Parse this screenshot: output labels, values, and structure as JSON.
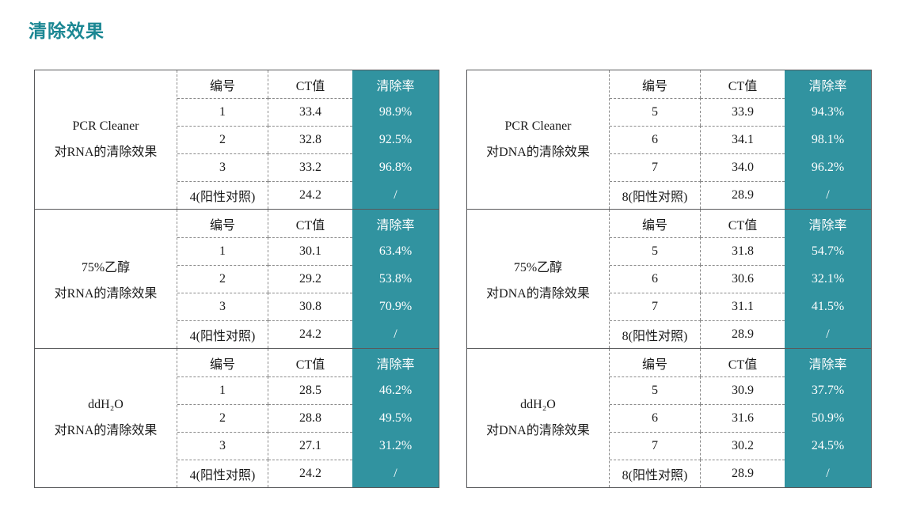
{
  "title": "清除效果",
  "colors": {
    "accent": "#3193A0",
    "title": "#1B8793"
  },
  "col_headers": {
    "id": "编号",
    "ct": "CT值",
    "rate": "清除率"
  },
  "tables": [
    {
      "name": "RNA清除效果表",
      "sections": [
        {
          "label1": "PCR Cleaner",
          "label2": "对RNA的清除效果",
          "rows": [
            [
              "1",
              "33.4",
              "98.9%"
            ],
            [
              "2",
              "32.8",
              "92.5%"
            ],
            [
              "3",
              "33.2",
              "96.8%"
            ],
            [
              "4(阳性对照)",
              "24.2",
              "/"
            ]
          ]
        },
        {
          "label1": "75%乙醇",
          "label2": "对RNA的清除效果",
          "rows": [
            [
              "1",
              "30.1",
              "63.4%"
            ],
            [
              "2",
              "29.2",
              "53.8%"
            ],
            [
              "3",
              "30.8",
              "70.9%"
            ],
            [
              "4(阳性对照)",
              "24.2",
              "/"
            ]
          ]
        },
        {
          "label1": "ddH₂O",
          "label2": "对RNA的清除效果",
          "rows": [
            [
              "1",
              "28.5",
              "46.2%"
            ],
            [
              "2",
              "28.8",
              "49.5%"
            ],
            [
              "3",
              "27.1",
              "31.2%"
            ],
            [
              "4(阳性对照)",
              "24.2",
              "/"
            ]
          ]
        }
      ]
    },
    {
      "name": "DNA清除效果表",
      "sections": [
        {
          "label1": "PCR Cleaner",
          "label2": "对DNA的清除效果",
          "rows": [
            [
              "5",
              "33.9",
              "94.3%"
            ],
            [
              "6",
              "34.1",
              "98.1%"
            ],
            [
              "7",
              "34.0",
              "96.2%"
            ],
            [
              "8(阳性对照)",
              "28.9",
              "/"
            ]
          ]
        },
        {
          "label1": "75%乙醇",
          "label2": "对DNA的清除效果",
          "rows": [
            [
              "5",
              "31.8",
              "54.7%"
            ],
            [
              "6",
              "30.6",
              "32.1%"
            ],
            [
              "7",
              "31.1",
              "41.5%"
            ],
            [
              "8(阳性对照)",
              "28.9",
              "/"
            ]
          ]
        },
        {
          "label1": "ddH₂O",
          "label2": "对DNA的清除效果",
          "rows": [
            [
              "5",
              "30.9",
              "37.7%"
            ],
            [
              "6",
              "31.6",
              "50.9%"
            ],
            [
              "7",
              "30.2",
              "24.5%"
            ],
            [
              "8(阳性对照)",
              "28.9",
              "/"
            ]
          ]
        }
      ]
    }
  ]
}
